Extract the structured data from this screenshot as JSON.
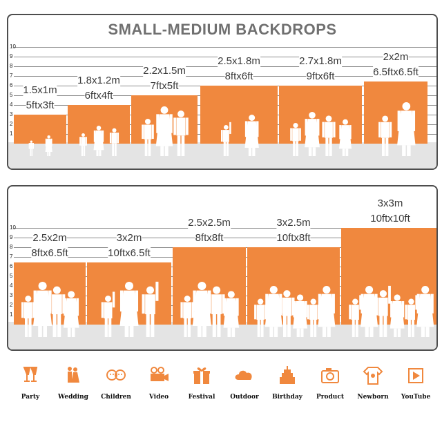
{
  "title": "SMALL-MEDIUM BACKDROPS",
  "scale_labels": [
    "10",
    "9",
    "8",
    "7",
    "6",
    "5",
    "4",
    "3",
    "2",
    "1"
  ],
  "top_sizes": [
    {
      "metric": "1.5x1m",
      "imperial": "5ftx3ft"
    },
    {
      "metric": "1.8x1.2m",
      "imperial": "6ftx4ft"
    },
    {
      "metric": "2.2x1.5m",
      "imperial": "7ftx5ft"
    },
    {
      "metric": "2.5x1.8m",
      "imperial": "8ftx6ft"
    },
    {
      "metric": "2.7x1.8m",
      "imperial": "9ftx6ft"
    },
    {
      "metric": "2x2m",
      "imperial": "6.5ftx6.5ft"
    }
  ],
  "bottom_sizes": [
    {
      "metric": "2.5x2m",
      "imperial": "8ftx6.5ft"
    },
    {
      "metric": "3x2m",
      "imperial": "10ftx6.5ft"
    },
    {
      "metric": "2.5x2.5m",
      "imperial": "8ftx8ft"
    },
    {
      "metric": "3x2.5m",
      "imperial": "10ftx8ft"
    },
    {
      "metric": "3x3m",
      "imperial": "10ftx10ft"
    }
  ],
  "uses": [
    {
      "label": "Party",
      "icon": "party-glasses-icon"
    },
    {
      "label": "Wedding",
      "icon": "wedding-couple-icon"
    },
    {
      "label": "Children",
      "icon": "children-faces-icon"
    },
    {
      "label": "Video",
      "icon": "video-camera-icon"
    },
    {
      "label": "Festival",
      "icon": "gift-box-icon"
    },
    {
      "label": "Outdoor",
      "icon": "cloud-icon"
    },
    {
      "label": "Birthday",
      "icon": "birthday-cake-icon"
    },
    {
      "label": "Product",
      "icon": "photo-camera-icon"
    },
    {
      "label": "Newborn",
      "icon": "baby-onesie-icon"
    },
    {
      "label": "YouTube",
      "icon": "play-button-icon"
    }
  ],
  "colors": {
    "accent": "#f0883e",
    "border": "#4d4d4d",
    "floor": "#e4e4e4"
  }
}
